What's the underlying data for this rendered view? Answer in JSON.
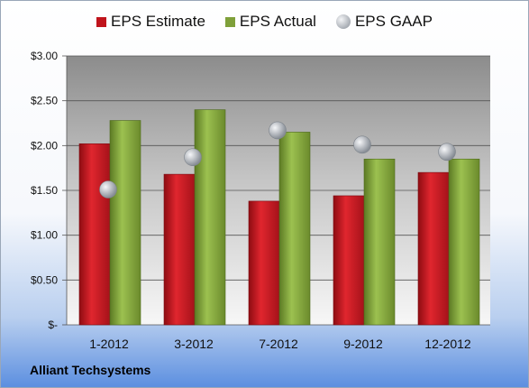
{
  "chart_data": {
    "type": "bar",
    "categories": [
      "1-2012",
      "3-2012",
      "7-2012",
      "9-2012",
      "12-2012"
    ],
    "series": [
      {
        "name": "EPS Estimate",
        "kind": "bar",
        "color": "#c0141c",
        "values": [
          2.02,
          1.68,
          1.38,
          1.44,
          1.7
        ]
      },
      {
        "name": "EPS Actual",
        "kind": "bar",
        "color": "#7fa03a",
        "values": [
          2.28,
          2.4,
          2.15,
          1.85,
          1.85
        ]
      },
      {
        "name": "EPS GAAP",
        "kind": "scatter",
        "color": "#b8bcc2",
        "values": [
          1.51,
          1.87,
          2.17,
          2.01,
          1.93
        ]
      }
    ],
    "ylim": [
      0,
      3.0
    ],
    "yticks": [
      0,
      0.5,
      1.0,
      1.5,
      2.0,
      2.5,
      3.0
    ],
    "ytick_labels": [
      "$-",
      "$0.50",
      "$1.00",
      "$1.50",
      "$2.00",
      "$2.50",
      "$3.00"
    ],
    "grid": true,
    "legend_position": "top",
    "xlabel": "",
    "ylabel": ""
  },
  "footer": {
    "company": "Alliant Techsystems"
  }
}
